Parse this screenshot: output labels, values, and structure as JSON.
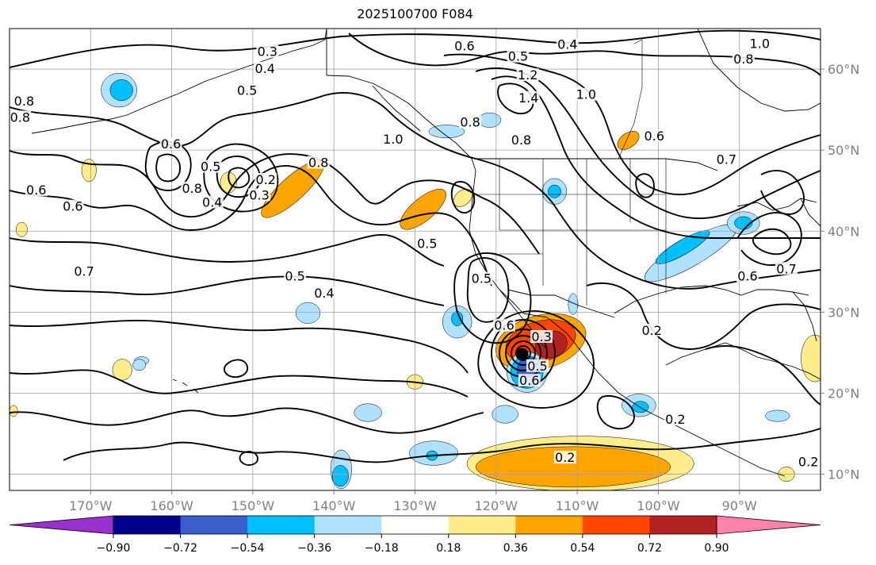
{
  "title": "2025100700 F084",
  "map": {
    "lon_range": [
      -180,
      -80
    ],
    "lat_range": [
      8,
      65
    ],
    "lon_ticks": [
      {
        "value": -170,
        "label": "170°W"
      },
      {
        "value": -160,
        "label": "160°W"
      },
      {
        "value": -150,
        "label": "150°W"
      },
      {
        "value": -140,
        "label": "140°W"
      },
      {
        "value": -130,
        "label": "130°W"
      },
      {
        "value": -120,
        "label": "120°W"
      },
      {
        "value": -110,
        "label": "110°W"
      },
      {
        "value": -100,
        "label": "100°W"
      },
      {
        "value": -90,
        "label": "90°W"
      }
    ],
    "lat_ticks": [
      {
        "value": 60,
        "label": "60°N"
      },
      {
        "value": 50,
        "label": "50°N"
      },
      {
        "value": 40,
        "label": "40°N"
      },
      {
        "value": 30,
        "label": "30°N"
      },
      {
        "value": 20,
        "label": "20°N"
      },
      {
        "value": 10,
        "label": "10°N"
      }
    ],
    "storm_marker": {
      "lon": -116.8,
      "lat": 24.8,
      "color": "#000000"
    },
    "contour_labels": [
      {
        "text": "0.3",
        "lon": -148.2,
        "lat": 62.1
      },
      {
        "text": "0.4",
        "lon": -148.5,
        "lat": 60.0
      },
      {
        "text": "0.5",
        "lon": -150.7,
        "lat": 57.3
      },
      {
        "text": "0.6",
        "lon": -123.9,
        "lat": 62.8
      },
      {
        "text": "0.5",
        "lon": -117.3,
        "lat": 61.5
      },
      {
        "text": "0.4",
        "lon": -111.2,
        "lat": 63.0
      },
      {
        "text": "1.0",
        "lon": -87.5,
        "lat": 63.1
      },
      {
        "text": "0.8",
        "lon": -89.5,
        "lat": 61.2
      },
      {
        "text": "0.8",
        "lon": -178.2,
        "lat": 56.0
      },
      {
        "text": "0.8",
        "lon": -178.7,
        "lat": 54.0
      },
      {
        "text": "0.6",
        "lon": -160.1,
        "lat": 50.7
      },
      {
        "text": "0.6",
        "lon": -176.7,
        "lat": 45.0
      },
      {
        "text": "0.6",
        "lon": -172.2,
        "lat": 43.0
      },
      {
        "text": "0.5",
        "lon": -155.2,
        "lat": 47.9
      },
      {
        "text": "0.8",
        "lon": -157.5,
        "lat": 45.2
      },
      {
        "text": "0.4",
        "lon": -155.0,
        "lat": 43.5
      },
      {
        "text": "0.3",
        "lon": -149.2,
        "lat": 44.4
      },
      {
        "text": "0.2",
        "lon": -148.4,
        "lat": 46.3
      },
      {
        "text": "0.8",
        "lon": -141.9,
        "lat": 48.4
      },
      {
        "text": "1.0",
        "lon": -132.7,
        "lat": 51.3
      },
      {
        "text": "0.8",
        "lon": -123.2,
        "lat": 53.4
      },
      {
        "text": "1.2",
        "lon": -116.1,
        "lat": 59.2
      },
      {
        "text": "1.4",
        "lon": -116.0,
        "lat": 56.4
      },
      {
        "text": "1.0",
        "lon": -108.9,
        "lat": 56.8
      },
      {
        "text": "0.8",
        "lon": -116.9,
        "lat": 51.2
      },
      {
        "text": "0.6",
        "lon": -100.5,
        "lat": 51.7
      },
      {
        "text": "0.7",
        "lon": -91.6,
        "lat": 48.8
      },
      {
        "text": "0.7",
        "lon": -84.2,
        "lat": 35.3
      },
      {
        "text": "0.6",
        "lon": -89.0,
        "lat": 34.4
      },
      {
        "text": "0.7",
        "lon": -170.8,
        "lat": 35.0
      },
      {
        "text": "0.5",
        "lon": -144.8,
        "lat": 34.4
      },
      {
        "text": "0.4",
        "lon": -141.2,
        "lat": 32.3
      },
      {
        "text": "0.5",
        "lon": -128.5,
        "lat": 38.4
      },
      {
        "text": "0.5",
        "lon": -121.8,
        "lat": 34.1
      },
      {
        "text": "0.6",
        "lon": -119.0,
        "lat": 28.3
      },
      {
        "text": "0.3",
        "lon": -114.4,
        "lat": 26.9
      },
      {
        "text": "0.2",
        "lon": -100.8,
        "lat": 27.7
      },
      {
        "text": "0.5",
        "lon": -114.9,
        "lat": 23.3
      },
      {
        "text": "0.6",
        "lon": -115.9,
        "lat": 21.5
      },
      {
        "text": "0.2",
        "lon": -97.9,
        "lat": 16.7
      },
      {
        "text": "0.2",
        "lon": -111.5,
        "lat": 12.0
      },
      {
        "text": "0.2",
        "lon": -81.5,
        "lat": 11.5
      }
    ],
    "fill_blobs": [
      {
        "value": -0.36,
        "lon": -166.5,
        "lat": 57.4,
        "rx": 2.2,
        "ry": 2.1
      },
      {
        "value": -0.54,
        "lon": -166.2,
        "lat": 57.4,
        "rx": 1.4,
        "ry": 1.3
      },
      {
        "value": 0.36,
        "lon": -129.0,
        "lat": 42.7,
        "rx": 3.5,
        "ry": 1.4,
        "angle": -40
      },
      {
        "value": 0.18,
        "lon": -124.1,
        "lat": 44.1,
        "rx": 1.3,
        "ry": 0.9,
        "angle": -40
      },
      {
        "value": 0.36,
        "lon": -145.1,
        "lat": 45.2,
        "rx": 5.0,
        "ry": 1.5,
        "angle": -42
      },
      {
        "value": 0.18,
        "lon": -153.0,
        "lat": 46.0,
        "rx": 1.0,
        "ry": 1.3
      },
      {
        "value": 0.36,
        "lon": -103.7,
        "lat": 51.2,
        "rx": 1.5,
        "ry": 0.9,
        "angle": -35
      },
      {
        "value": -0.36,
        "lon": -120.8,
        "lat": 53.7,
        "rx": 1.4,
        "ry": 0.9
      },
      {
        "value": -0.36,
        "lon": -126.1,
        "lat": 52.3,
        "rx": 2.2,
        "ry": 0.8
      },
      {
        "value": -0.36,
        "lon": -112.8,
        "lat": 44.9,
        "rx": 1.5,
        "ry": 1.6
      },
      {
        "value": -0.54,
        "lon": -112.8,
        "lat": 44.9,
        "rx": 0.8,
        "ry": 0.8
      },
      {
        "value": -0.36,
        "lon": -96.0,
        "lat": 37.3,
        "rx": 6.5,
        "ry": 1.6,
        "angle": -30
      },
      {
        "value": -0.54,
        "lon": -97.0,
        "lat": 38.0,
        "rx": 3.8,
        "ry": 0.9,
        "angle": -30
      },
      {
        "value": -0.36,
        "lon": -89.5,
        "lat": 41.0,
        "rx": 2.0,
        "ry": 1.4
      },
      {
        "value": -0.54,
        "lon": -89.5,
        "lat": 41.0,
        "rx": 1.1,
        "ry": 0.8
      },
      {
        "value": -0.36,
        "lon": -110.5,
        "lat": 31.0,
        "rx": 0.6,
        "ry": 1.3
      },
      {
        "value": 0.36,
        "lon": -114.5,
        "lat": 26.3,
        "rx": 5.7,
        "ry": 3.3,
        "angle": -15
      },
      {
        "value": 0.54,
        "lon": -114.5,
        "lat": 26.4,
        "rx": 4.4,
        "ry": 2.5,
        "angle": -15
      },
      {
        "value": 0.72,
        "lon": -113.2,
        "lat": 26.0,
        "rx": 2.0,
        "ry": 1.6,
        "angle": -20
      },
      {
        "value": -0.36,
        "lon": -116.2,
        "lat": 22.6,
        "rx": 2.5,
        "ry": 2.5
      },
      {
        "value": -0.54,
        "lon": -116.2,
        "lat": 22.6,
        "rx": 2.0,
        "ry": 2.0
      },
      {
        "value": -0.72,
        "lon": -116.0,
        "lat": 22.8,
        "rx": 1.4,
        "ry": 1.6
      },
      {
        "value": -0.36,
        "lon": -124.8,
        "lat": 28.8,
        "rx": 1.8,
        "ry": 2.0
      },
      {
        "value": -0.54,
        "lon": -124.8,
        "lat": 29.2,
        "rx": 0.7,
        "ry": 0.9
      },
      {
        "value": -0.36,
        "lon": -163.7,
        "lat": 24.0,
        "rx": 0.9,
        "ry": 0.5
      },
      {
        "value": -0.36,
        "lon": -164.0,
        "lat": 23.5,
        "rx": 0.8,
        "ry": 0.7
      },
      {
        "value": 0.18,
        "lon": -166.1,
        "lat": 22.9,
        "rx": 1.2,
        "ry": 1.3
      },
      {
        "value": -0.36,
        "lon": -143.2,
        "lat": 29.9,
        "rx": 1.5,
        "ry": 1.3
      },
      {
        "value": 0.18,
        "lon": -130.0,
        "lat": 21.4,
        "rx": 1.0,
        "ry": 0.9
      },
      {
        "value": -0.36,
        "lon": -135.8,
        "lat": 17.6,
        "rx": 1.7,
        "ry": 1.1
      },
      {
        "value": -0.36,
        "lon": -118.9,
        "lat": 17.4,
        "rx": 1.6,
        "ry": 1.1
      },
      {
        "value": -0.36,
        "lon": -102.4,
        "lat": 18.5,
        "rx": 2.1,
        "ry": 1.4
      },
      {
        "value": -0.54,
        "lon": -102.2,
        "lat": 18.3,
        "rx": 1.0,
        "ry": 0.7
      },
      {
        "value": -0.36,
        "lon": -127.7,
        "lat": 12.6,
        "rx": 3.0,
        "ry": 1.5
      },
      {
        "value": -0.54,
        "lon": -127.9,
        "lat": 12.3,
        "rx": 0.7,
        "ry": 0.6
      },
      {
        "value": -0.36,
        "lon": -139.1,
        "lat": 10.6,
        "rx": 1.3,
        "ry": 2.4
      },
      {
        "value": -0.54,
        "lon": -139.2,
        "lat": 9.8,
        "rx": 1.0,
        "ry": 1.3
      },
      {
        "value": 0.18,
        "lon": -109.6,
        "lat": 11.3,
        "rx": 14.0,
        "ry": 3.4
      },
      {
        "value": 0.36,
        "lon": -110.5,
        "lat": 10.9,
        "rx": 12.0,
        "ry": 2.5
      },
      {
        "value": -0.36,
        "lon": -85.3,
        "lat": 17.2,
        "rx": 1.5,
        "ry": 0.7
      },
      {
        "value": 0.36,
        "lon": -80.7,
        "lat": 24.3,
        "rx": 1.3,
        "ry": 2.3
      },
      {
        "value": 0.18,
        "lon": -80.7,
        "lat": 24.3,
        "rx": 1.7,
        "ry": 2.9
      },
      {
        "value": 0.18,
        "lon": -84.2,
        "lat": 10.0,
        "rx": 1.0,
        "ry": 0.9
      },
      {
        "value": 0.18,
        "lon": -179.5,
        "lat": 17.8,
        "rx": 0.5,
        "ry": 0.7
      },
      {
        "value": 0.18,
        "lon": -178.5,
        "lat": 40.2,
        "rx": 0.7,
        "ry": 0.9
      },
      {
        "value": 0.18,
        "lon": -170.2,
        "lat": 47.5,
        "rx": 0.9,
        "ry": 1.4
      }
    ]
  },
  "colorbar": {
    "ticks": [
      "−0.90",
      "−0.72",
      "−0.54",
      "−0.36",
      "−0.18",
      "0.18",
      "0.36",
      "0.54",
      "0.72",
      "0.90"
    ],
    "bins": [
      {
        "color": "#9932cc"
      },
      {
        "color": "#00008b"
      },
      {
        "color": "#3a5fcd"
      },
      {
        "color": "#00bfff"
      },
      {
        "color": "#b0e2ff"
      },
      {
        "color": "#ffffff"
      },
      {
        "color": "#ffec8b"
      },
      {
        "color": "#ffa500"
      },
      {
        "color": "#ff4500"
      },
      {
        "color": "#b22222"
      },
      {
        "color": "#ff82ab"
      }
    ],
    "level_colors": {
      "-0.72": "#3a5fcd",
      "-0.54": "#00bfff",
      "-0.36": "#b0e2ff",
      "0.18": "#ffec8b",
      "0.36": "#ffa500",
      "0.54": "#ff4500",
      "0.72": "#b22222"
    }
  }
}
